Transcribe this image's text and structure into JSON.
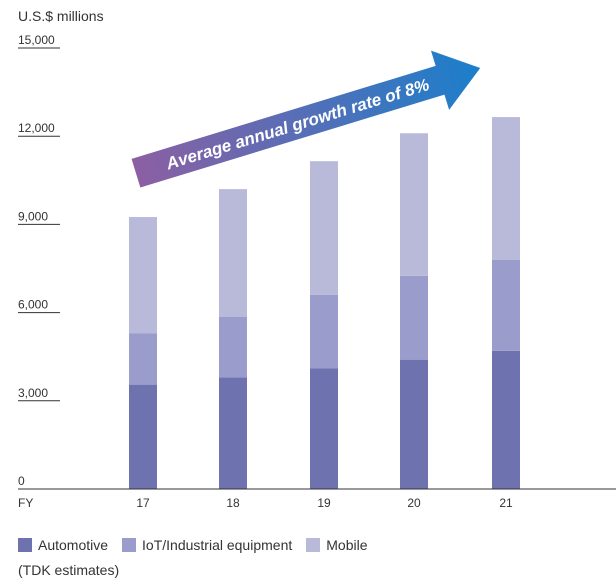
{
  "unit_label": "U.S.$ millions",
  "x_prefix": "FY",
  "annotation": "Average annual growth rate of 8%",
  "note": "(TDK estimates)",
  "colors": {
    "automotive": "#6e72ae",
    "iot": "#9a9ccb",
    "mobile": "#b9b9da",
    "arrow_start": "#8c5fa3",
    "arrow_end": "#1b7fcb"
  },
  "chart_data": {
    "type": "bar",
    "stacked": true,
    "categories": [
      "17",
      "18",
      "19",
      "20",
      "21"
    ],
    "series": [
      {
        "name": "Automotive",
        "values": [
          3550,
          3800,
          4100,
          4400,
          4700
        ]
      },
      {
        "name": "IoT/Industrial equipment",
        "values": [
          1750,
          2050,
          2500,
          2850,
          3100
        ]
      },
      {
        "name": "Mobile",
        "values": [
          3950,
          4350,
          4550,
          4850,
          4850
        ]
      }
    ],
    "yticks": [
      0,
      3000,
      6000,
      9000,
      12000,
      15000
    ],
    "ytick_labels": [
      "0",
      "3,000",
      "6,000",
      "9,000",
      "12,000",
      "15,000"
    ],
    "ylim": [
      0,
      15000
    ],
    "ylabel": "U.S.$ millions",
    "legend_position": "bottom-left"
  }
}
